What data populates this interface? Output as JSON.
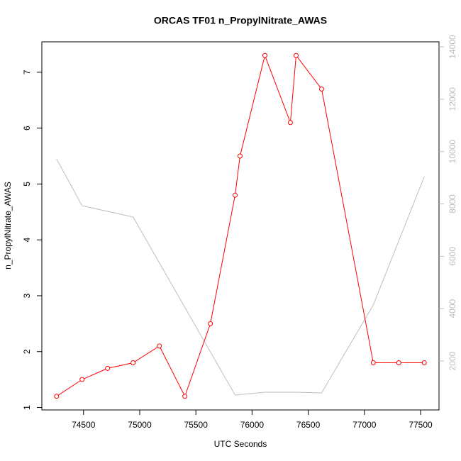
{
  "chart_data": {
    "type": "line",
    "title": "ORCAS TF01 n_PropylNitrate_AWAS",
    "xlabel": "UTC Seconds",
    "ylabel": "n_PropylNitrate_AWAS",
    "xlim": [
      74129,
      77664
    ],
    "xticks": [
      74500,
      75000,
      75500,
      76000,
      76500,
      77000,
      77500
    ],
    "ylim": [
      0.956,
      7.544
    ],
    "yticks": [
      1,
      2,
      3,
      4,
      5,
      6,
      7
    ],
    "y2lim": [
      130,
      14190
    ],
    "y2ticks": [
      2000,
      4000,
      6000,
      8000,
      10000,
      12000,
      14000
    ],
    "y2color": "#bebebe",
    "series": [
      {
        "color": "#ff0000",
        "markers": true,
        "x": [
          74260,
          74487,
          74714,
          74941,
          75175,
          75402,
          75629,
          75849,
          75893,
          76114,
          76341,
          76392,
          76619,
          77079,
          77306,
          77533
        ],
        "values": [
          1.2,
          1.5,
          1.7,
          1.8,
          2.1,
          1.2,
          2.5,
          4.8,
          5.5,
          7.3,
          6.1,
          7.3,
          6.7,
          1.8,
          1.8,
          1.8
        ]
      },
      {
        "color": "#bebebe",
        "markers": false,
        "axis": "y2",
        "x": [
          74260,
          74487,
          74941,
          75849,
          76114,
          76392,
          76619,
          77079,
          77533
        ],
        "values": [
          9720,
          7930,
          7500,
          700,
          808,
          808,
          780,
          4140,
          9040
        ]
      }
    ]
  }
}
